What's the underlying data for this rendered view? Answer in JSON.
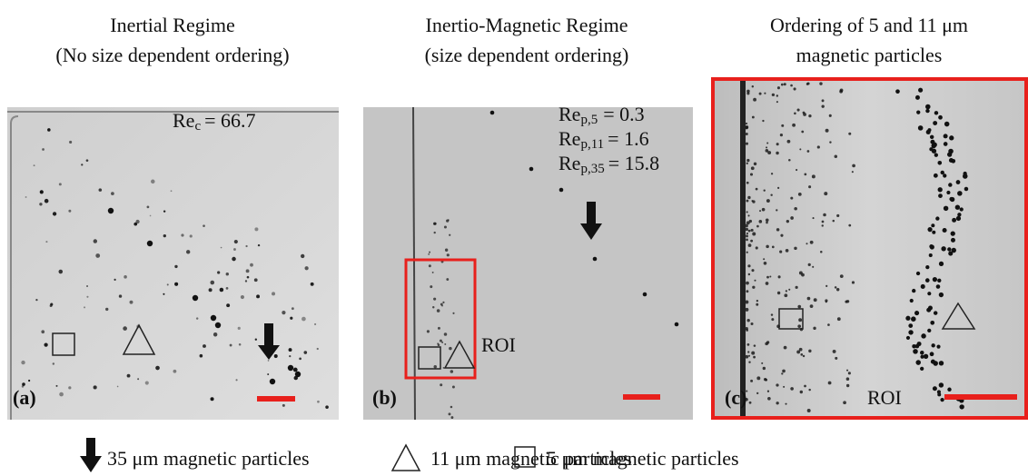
{
  "panels": [
    {
      "title_lines": [
        "Inertial Regime",
        "(No size dependent ordering)"
      ],
      "label": "(a)",
      "reynolds": [
        {
          "base": "Re",
          "sub": "c",
          "value": "= 66.7"
        }
      ]
    },
    {
      "title_lines": [
        "Inertio-Magnetic Regime",
        "(size dependent ordering)"
      ],
      "label": "(b)",
      "roi": "ROI",
      "reynolds": [
        {
          "base": "Re",
          "sub": "p,5",
          "value": "= 0.3"
        },
        {
          "base": "Re",
          "sub": "p,11",
          "value": "= 1.6"
        },
        {
          "base": "Re",
          "sub": "p,35",
          "value": "= 15.8"
        }
      ]
    },
    {
      "title_lines": [
        "Ordering of 5 and 11 μm",
        "magnetic particles"
      ],
      "label": "(c)",
      "roi": "ROI"
    }
  ],
  "legend": [
    "35 μm magnetic particles",
    "11 μm magnetic particles",
    "5 μm magnetic particles"
  ]
}
